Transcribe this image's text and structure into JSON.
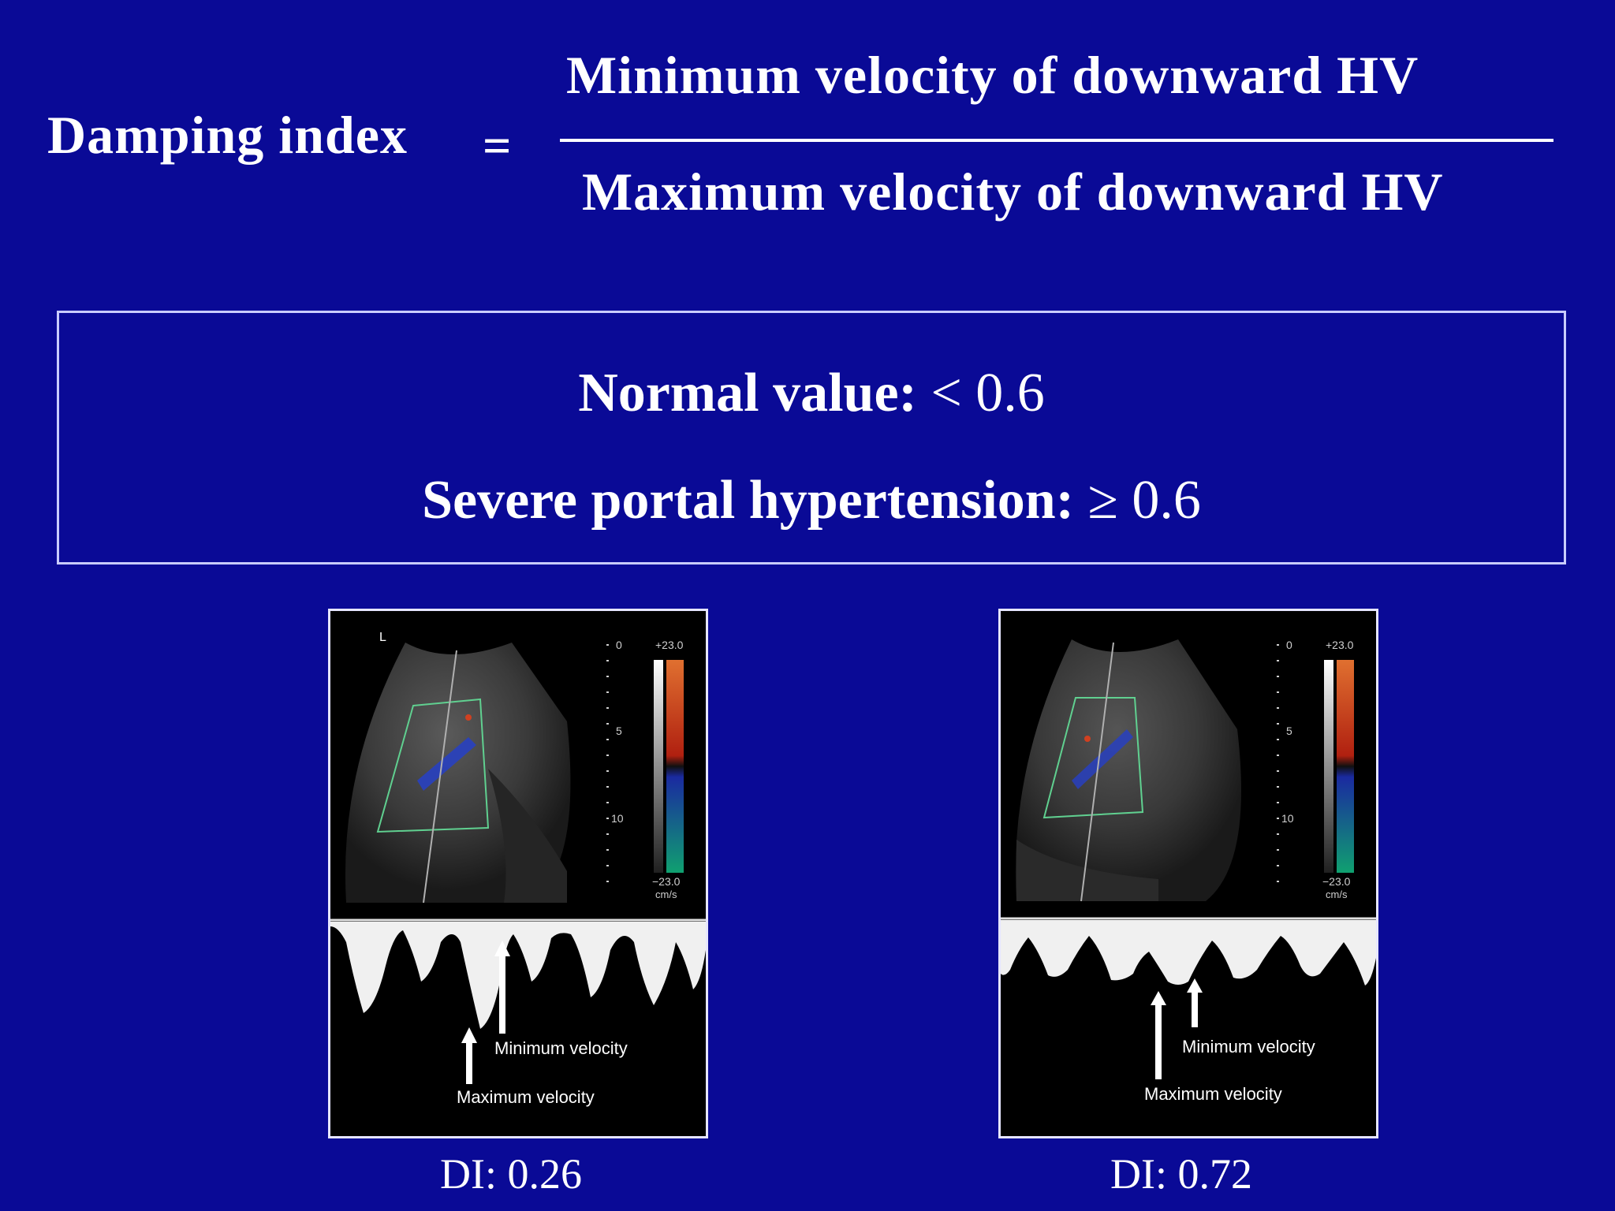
{
  "formula": {
    "label": "Damping index",
    "equals": "=",
    "numerator": "Minimum velocity of downward HV",
    "denominator": "Maximum velocity of downward HV"
  },
  "reference": {
    "normal_label": "Normal value:",
    "normal_value": "< 0.6",
    "severe_label": "Severe portal hypertension:",
    "severe_value": "≥ 0.6"
  },
  "panels": [
    {
      "caption": "DI: 0.26",
      "scale_top": "+23.0",
      "scale_bottom": "−23.0",
      "units": "cm/s",
      "depth_0": "0",
      "depth_5": "5",
      "depth_10": "10",
      "arrow_min_label": "Minimum velocity",
      "arrow_max_label": "Maximum velocity",
      "marker": "L"
    },
    {
      "caption": "DI: 0.72",
      "scale_top": "+23.0",
      "scale_bottom": "−23.0",
      "units": "cm/s",
      "depth_0": "0",
      "depth_5": "5",
      "depth_10": "10",
      "arrow_min_label": "Minimum velocity",
      "arrow_max_label": "Maximum velocity"
    }
  ],
  "colors": {
    "background": "#0a0a96",
    "text": "#ffffff",
    "doppler_red": "#d04020",
    "doppler_blue": "#2030b0",
    "doppler_green": "#10a070",
    "roi_box": "#60d090"
  }
}
